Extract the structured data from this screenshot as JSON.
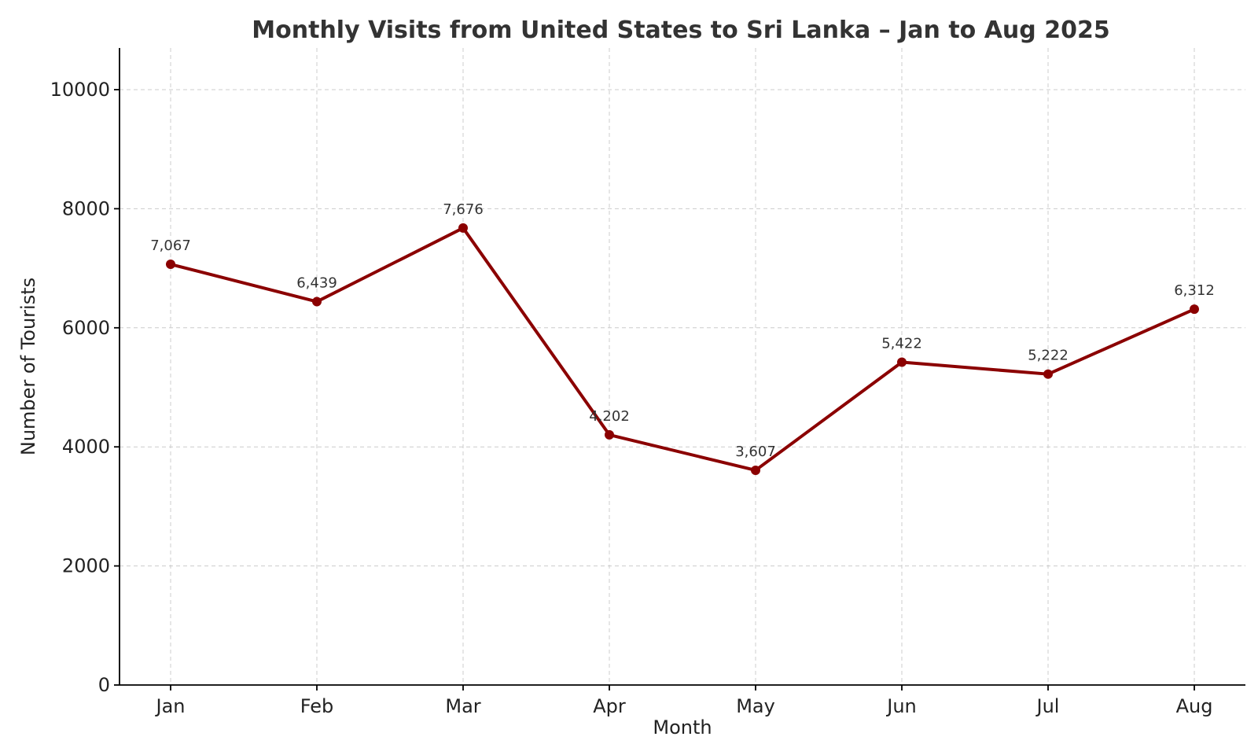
{
  "chart_data": {
    "type": "line",
    "title": "Monthly Visits from United States to Sri Lanka – Jan to Aug 2025",
    "xlabel": "Month",
    "ylabel": "Number of Tourists",
    "categories": [
      "Jan",
      "Feb",
      "Mar",
      "Apr",
      "May",
      "Jun",
      "Jul",
      "Aug"
    ],
    "series": [
      {
        "name": "United States",
        "values": [
          7067,
          6439,
          7676,
          4202,
          3607,
          5422,
          5222,
          6312
        ],
        "labels": [
          "7,067",
          "6,439",
          "7,676",
          "4,202",
          "3,607",
          "5,422",
          "5,222",
          "6,312"
        ]
      }
    ],
    "ylim": [
      0,
      10700
    ],
    "yticks": [
      0,
      2000,
      4000,
      6000,
      8000,
      10000
    ],
    "ytick_labels": [
      "0",
      "2000",
      "4000",
      "6000",
      "8000",
      "10000"
    ],
    "grid": true,
    "colors": {
      "line": "#8b0000",
      "grid": "#cccccc",
      "text": "#222222",
      "title": "#333333"
    }
  }
}
